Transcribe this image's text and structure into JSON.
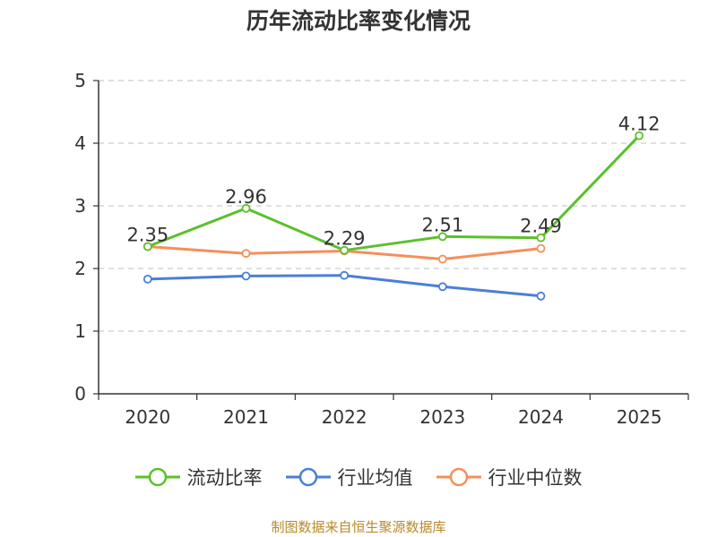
{
  "chart_data": {
    "type": "line",
    "title": "历年流动比率变化情况",
    "categories": [
      "2020",
      "2021",
      "2022",
      "2023",
      "2024",
      "2025"
    ],
    "ylim": [
      0,
      5
    ],
    "yticks": [
      0,
      1,
      2,
      3,
      4,
      5
    ],
    "grid": true,
    "legend_position": "bottom",
    "series": [
      {
        "name": "流动比率",
        "color": "#5bc02c",
        "values": [
          2.35,
          2.96,
          2.29,
          2.51,
          2.49,
          4.12
        ],
        "labels": [
          "2.35",
          "2.96",
          "2.29",
          "2.51",
          "2.49",
          "4.12"
        ],
        "show_labels": true
      },
      {
        "name": "行业均值",
        "color": "#4a7fd6",
        "values": [
          1.83,
          1.88,
          1.89,
          1.71,
          1.56,
          null
        ],
        "show_labels": false
      },
      {
        "name": "行业中位数",
        "color": "#f58f5a",
        "values": [
          2.35,
          2.24,
          2.28,
          2.15,
          2.32,
          null
        ],
        "show_labels": false
      }
    ],
    "source": "制图数据来自恒生聚源数据库"
  }
}
